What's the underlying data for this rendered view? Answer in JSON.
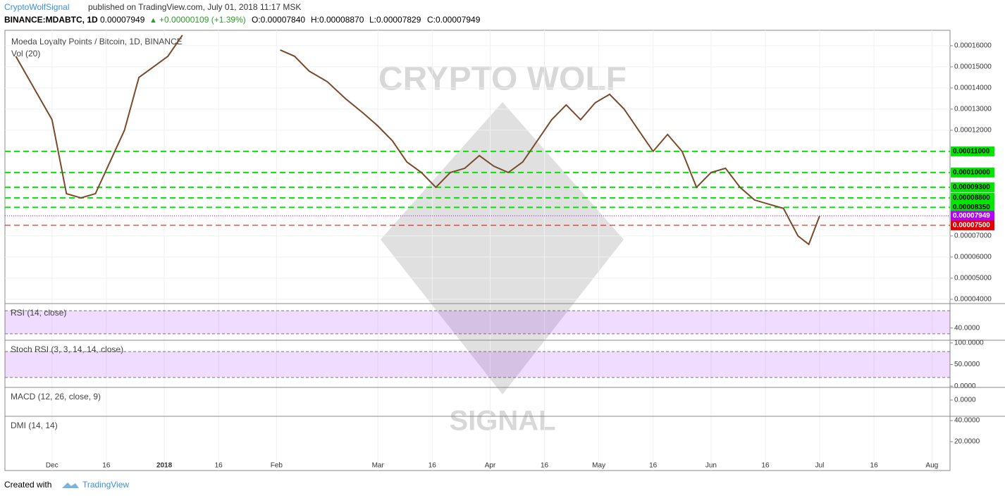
{
  "header": {
    "author": "CryptoWolfSignal",
    "published": "published on TradingView.com, July 01, 2018 11:17 MSK",
    "symbol": "BINANCE:MDABTC, 1D",
    "last": "0.00007949",
    "arrow": "▲",
    "change": "+0.00000109 (+1.39%)",
    "open": "O:0.00007840",
    "high": "H:0.00008870",
    "low": "L:0.00007829",
    "close": "C:0.00007949"
  },
  "legend": {
    "title": "Moeda Loyalty Points / Bitcoin, 1D, BINANCE",
    "volume": "Vol (20)"
  },
  "watermark": {
    "top": "CRYPTO WOLF",
    "bottom": "SIGNAL"
  },
  "chart_data": {
    "type": "line",
    "color": "#7a4a2a",
    "x": [
      "2017-11-21",
      "2017-11-26",
      "2017-12-01",
      "2017-12-05",
      "2017-12-09",
      "2017-12-13",
      "2017-12-17",
      "2017-12-21",
      "2017-12-25",
      "2017-12-29",
      "2018-01-02",
      "2018-01-06",
      "2018-01-15",
      "2018-02-02",
      "2018-02-06",
      "2018-02-10",
      "2018-02-15",
      "2018-02-20",
      "2018-02-25",
      "2018-03-01",
      "2018-03-05",
      "2018-03-09",
      "2018-03-13",
      "2018-03-17",
      "2018-03-21",
      "2018-03-25",
      "2018-03-29",
      "2018-04-02",
      "2018-04-06",
      "2018-04-10",
      "2018-04-14",
      "2018-04-18",
      "2018-04-22",
      "2018-04-26",
      "2018-04-30",
      "2018-05-04",
      "2018-05-08",
      "2018-05-12",
      "2018-05-16",
      "2018-05-20",
      "2018-05-24",
      "2018-05-28",
      "2018-06-01",
      "2018-06-05",
      "2018-06-09",
      "2018-06-13",
      "2018-06-17",
      "2018-06-21",
      "2018-06-25",
      "2018-06-28",
      "2018-07-01"
    ],
    "values": [
      0.000155,
      0.00014,
      0.000125,
      9e-05,
      8.8e-05,
      9e-05,
      0.000105,
      0.00012,
      0.000145,
      0.00015,
      0.000155,
      0.000165,
      null,
      0.000158,
      0.000155,
      0.000148,
      0.000143,
      0.000135,
      0.000128,
      0.000122,
      0.000115,
      0.000105,
      0.0001,
      9.3e-05,
      0.0001,
      0.000102,
      0.000108,
      0.000103,
      0.0001,
      0.000105,
      0.000115,
      0.000125,
      0.000132,
      0.000125,
      0.000133,
      0.000137,
      0.00013,
      0.00012,
      0.00011,
      0.000118,
      0.00011,
      9.3e-05,
      0.0001,
      0.000102,
      9.3e-05,
      8.7e-05,
      8.5e-05,
      8.3e-05,
      7e-05,
      6.6e-05,
      7.949e-05
    ],
    "xlim": [
      "2017-11-18",
      "2018-08-06"
    ],
    "xticks": [
      {
        "value": "2017-12-01",
        "label": "Dec"
      },
      {
        "value": "2017-12-16",
        "label": "16"
      },
      {
        "value": "2018-01-01",
        "label": "2018"
      },
      {
        "value": "2018-01-16",
        "label": "16"
      },
      {
        "value": "2018-02-01",
        "label": "Feb"
      },
      {
        "value": "2018-03-01",
        "label": "Mar"
      },
      {
        "value": "2018-03-16",
        "label": "16"
      },
      {
        "value": "2018-04-01",
        "label": "Apr"
      },
      {
        "value": "2018-04-16",
        "label": "16"
      },
      {
        "value": "2018-05-01",
        "label": "May"
      },
      {
        "value": "2018-05-16",
        "label": "16"
      },
      {
        "value": "2018-06-01",
        "label": "Jun"
      },
      {
        "value": "2018-06-16",
        "label": "16"
      },
      {
        "value": "2018-07-01",
        "label": "Jul"
      },
      {
        "value": "2018-07-16",
        "label": "16"
      },
      {
        "value": "2018-08-01",
        "label": "Aug"
      }
    ],
    "ylim": [
      3.83e-05,
      0.0001673
    ],
    "yticks": [
      {
        "value": 0.00016,
        "label": "0.00016000"
      },
      {
        "value": 0.00015,
        "label": "0.00015000"
      },
      {
        "value": 0.00014,
        "label": "0.00014000"
      },
      {
        "value": 0.00013,
        "label": "0.00013000"
      },
      {
        "value": 0.00012,
        "label": "0.00012000"
      },
      {
        "value": 7e-05,
        "label": "0.00007000"
      },
      {
        "value": 6e-05,
        "label": "0.00006000"
      },
      {
        "value": 5e-05,
        "label": "0.00005000"
      },
      {
        "value": 4e-05,
        "label": "0.00004000"
      }
    ],
    "levels": [
      {
        "value": 0.00011,
        "label": "0.00011000",
        "color": "#00e600"
      },
      {
        "value": 0.0001,
        "label": "0.00010000",
        "color": "#00e600"
      },
      {
        "value": 9.3e-05,
        "label": "0.00009300",
        "color": "#00e600"
      },
      {
        "value": 8.8e-05,
        "label": "0.00008800",
        "color": "#00e600"
      },
      {
        "value": 8.35e-05,
        "label": "0.00008350",
        "color": "#00e600"
      },
      {
        "value": 7.949e-05,
        "label": "0.00007949",
        "color": "#b300ff"
      },
      {
        "value": 7.5e-05,
        "label": "0.00007500",
        "color": "#e00000"
      }
    ],
    "panels": [
      {
        "label": "RSI (14, close)",
        "ylim": [
          20,
          80
        ],
        "yticks": [
          {
            "value": 40,
            "label": "40.0000"
          }
        ],
        "band": [
          30,
          70
        ]
      },
      {
        "label": "Stoch RSI (3, 3, 14, 14, close)",
        "ylim": [
          -3,
          103
        ],
        "yticks": [
          {
            "value": 100,
            "label": "100.0000"
          },
          {
            "value": 50,
            "label": "50.0000"
          },
          {
            "value": 0,
            "label": "0.0000"
          }
        ],
        "band": [
          20,
          80
        ]
      },
      {
        "label": "MACD (12, 26, close, 9)",
        "ylim": [
          -6.5e-06,
          4.5e-06
        ],
        "yticks": [
          {
            "value": 0,
            "label": "0.0000"
          }
        ]
      },
      {
        "label": "DMI (14, 14)",
        "ylim": [
          -7.3,
          42.7
        ],
        "yticks": [
          {
            "value": 40,
            "label": "40.0000"
          },
          {
            "value": 20,
            "label": "20.0000"
          }
        ]
      }
    ]
  },
  "footer": {
    "created": "Created with",
    "brand": "TradingView"
  }
}
